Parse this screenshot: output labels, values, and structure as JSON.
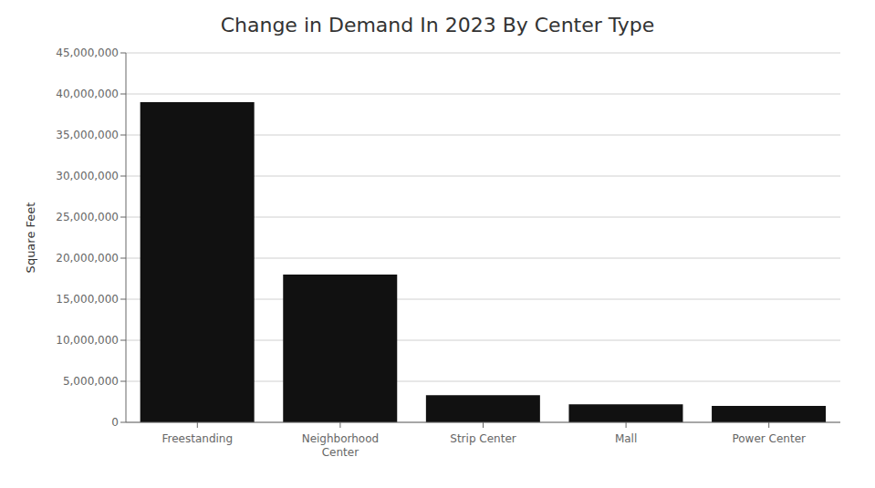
{
  "chart_data": {
    "type": "bar",
    "title": "Change in Demand In 2023 By Center Type",
    "categories": [
      "Freestanding",
      "Neighborhood\nCenter",
      "Strip Center",
      "Mall",
      "Power Center"
    ],
    "values": [
      39000000,
      18000000,
      3300000,
      2200000,
      2000000
    ],
    "color": "#111111",
    "ylabel": "Square Feet",
    "ylim": [
      0,
      45000000
    ],
    "yticks": [
      0,
      {
        "value": 5000000,
        "label": "5,000,000"
      },
      {
        "value": 10000000,
        "label": "10,000,000"
      },
      {
        "value": 15000000,
        "label": "15,000,000"
      },
      {
        "value": 20000000,
        "label": "20,000,000"
      },
      {
        "value": 25000000,
        "label": "25,000,000"
      },
      {
        "value": 30000000,
        "label": "30,000,000"
      },
      {
        "value": 35000000,
        "label": "35,000,000"
      },
      {
        "value": 40000000,
        "label": "40,000,000"
      },
      {
        "value": 45000000,
        "label": "45,000,000"
      }
    ],
    "grid": true
  }
}
